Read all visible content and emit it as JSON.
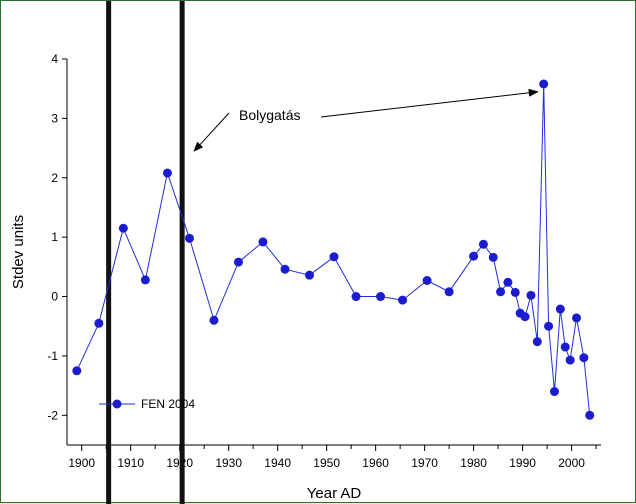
{
  "chart_data": {
    "type": "line",
    "title": "",
    "xlabel": "Year AD",
    "ylabel": "Stdev units",
    "xlim": [
      1897,
      2006
    ],
    "ylim": [
      -2.5,
      4
    ],
    "x_ticks": [
      1900,
      1910,
      1920,
      1930,
      1940,
      1950,
      1960,
      1970,
      1980,
      1990,
      2000
    ],
    "y_ticks": [
      -2,
      -1,
      0,
      1,
      2,
      3,
      4
    ],
    "series": [
      {
        "name": "FEN 2004",
        "color": "#1f2fd6",
        "marker_color": "#1c1ccf",
        "marker": "circle",
        "x": [
          1899,
          1903.5,
          1908.5,
          1913,
          1917.5,
          1922,
          1927,
          1932,
          1937,
          1941.5,
          1946.5,
          1951.5,
          1956,
          1961,
          1965.5,
          1970.5,
          1975,
          1980,
          1982,
          1984,
          1985.5,
          1987,
          1988.5,
          1989.5,
          1990.5,
          1991.7,
          1993,
          1994.3,
          1995.3,
          1996.5,
          1997.7,
          1998.7,
          1999.7,
          2001,
          2002.5,
          2003.7
        ],
        "y": [
          -1.25,
          -0.45,
          1.15,
          0.28,
          2.08,
          0.98,
          -0.4,
          0.58,
          0.92,
          0.46,
          0.36,
          0.67,
          0.0,
          0.0,
          -0.06,
          0.27,
          0.08,
          0.68,
          0.88,
          0.66,
          0.08,
          0.24,
          0.07,
          -0.28,
          -0.34,
          0.02,
          -0.76,
          3.58,
          -0.5,
          -1.6,
          -0.21,
          -0.85,
          -1.07,
          -0.36,
          -1.03,
          -2.0
        ]
      }
    ],
    "vertical_lines": [
      1905.5,
      1920.5
    ],
    "annotation": {
      "text": "Bolygatás",
      "arrow_targets": [
        [
          1920.5,
          2.45
        ],
        [
          1993.5,
          3.55
        ]
      ]
    },
    "legend": {
      "placement": "bottom-left",
      "label": "FEN 2004"
    },
    "grid": false
  }
}
